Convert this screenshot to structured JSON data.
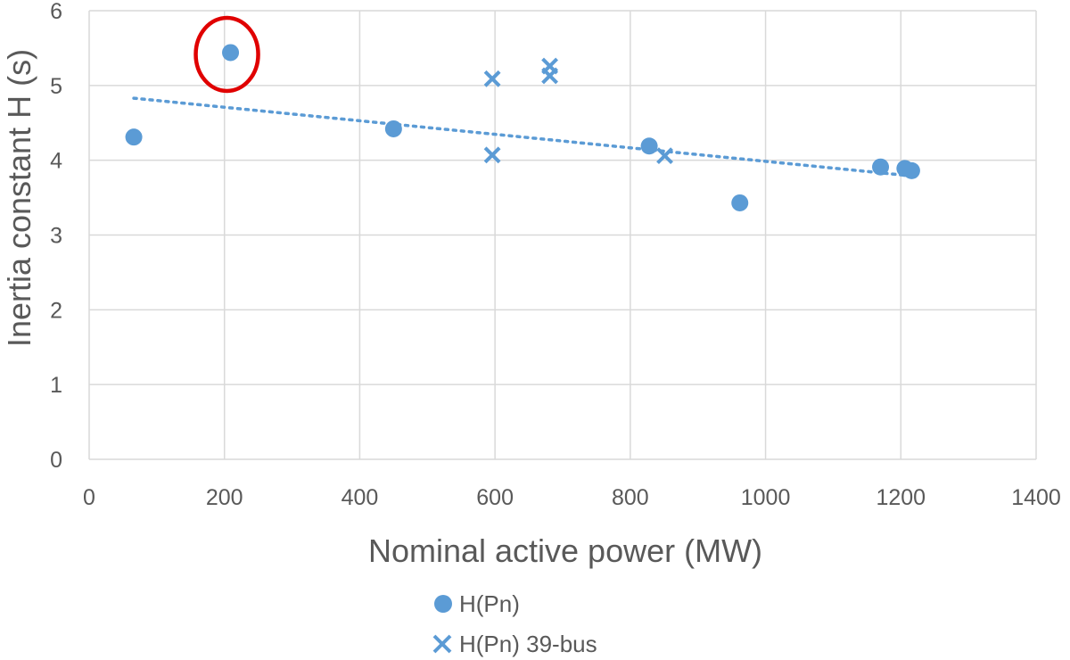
{
  "chart_data": {
    "type": "scatter",
    "title": "",
    "xlabel": "Nominal active power (MW)",
    "ylabel": "Inertia constant H (s)",
    "xlim": [
      0,
      1400
    ],
    "ylim": [
      0,
      6
    ],
    "xticks": [
      "0",
      "200",
      "400",
      "600",
      "800",
      "1000",
      "1200",
      "1400"
    ],
    "yticks": [
      "0",
      "1",
      "2",
      "3",
      "4",
      "5",
      "6"
    ],
    "grid": true,
    "legend_position": "bottom",
    "series": [
      {
        "name": "H(Pn)",
        "marker": "circle",
        "color": "#5B9BD5",
        "points": [
          {
            "x": 66,
            "y": 4.31
          },
          {
            "x": 209,
            "y": 5.44
          },
          {
            "x": 450,
            "y": 4.42
          },
          {
            "x": 828,
            "y": 4.19
          },
          {
            "x": 962,
            "y": 3.43
          },
          {
            "x": 1170,
            "y": 3.91
          },
          {
            "x": 1206,
            "y": 3.89
          },
          {
            "x": 1216,
            "y": 3.86
          }
        ]
      },
      {
        "name": "H(Pn) 39-bus",
        "marker": "x",
        "color": "#5B9BD5",
        "points": [
          {
            "x": 596,
            "y": 5.09
          },
          {
            "x": 596,
            "y": 4.07
          },
          {
            "x": 681,
            "y": 5.26
          },
          {
            "x": 681,
            "y": 5.13
          },
          {
            "x": 851,
            "y": 4.06
          }
        ]
      }
    ],
    "trendline": {
      "style": "dotted",
      "color": "#5B9BD5",
      "x": [
        66,
        1216
      ],
      "y": [
        4.83,
        3.79
      ]
    },
    "annotations": [
      {
        "type": "circle-highlight",
        "color": "#E00000",
        "x": 209,
        "y": 5.44
      }
    ]
  }
}
